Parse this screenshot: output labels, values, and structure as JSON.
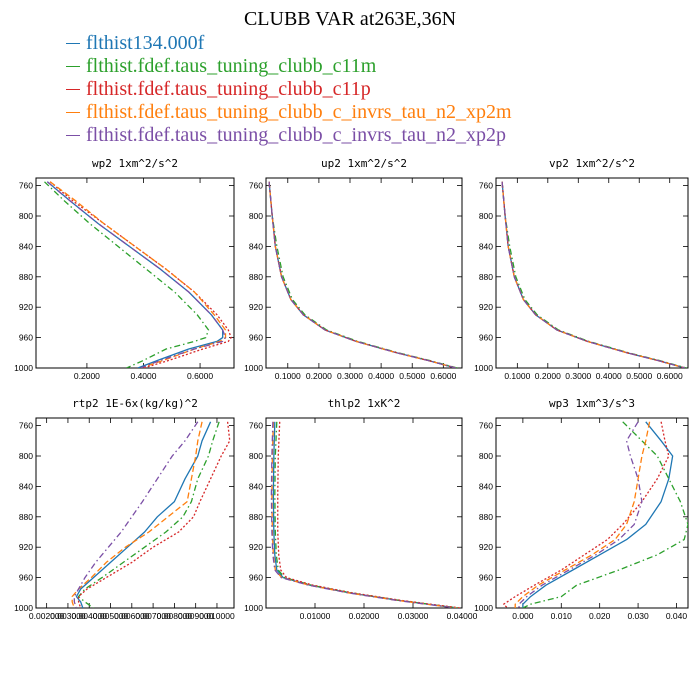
{
  "title": "CLUBB VAR at263E,36N",
  "colors": {
    "flthist134.000f": "#1f77b4",
    "c11m": "#2ca02c",
    "c11p": "#d62728",
    "xp2m": "#ff7f0e",
    "xp2p": "#7b4fa6"
  },
  "legend": [
    {
      "label": "flthist134.000f",
      "color": "#1f77b4"
    },
    {
      "label": "flthist.fdef.taus_tuning_clubb_c11m",
      "color": "#2ca02c"
    },
    {
      "label": "flthist.fdef.taus_tuning_clubb_c11p",
      "color": "#d62728"
    },
    {
      "label": "flthist.fdef.taus_tuning_clubb_c_invrs_tau_n2_xp2m",
      "color": "#ff7f0e"
    },
    {
      "label": "flthist.fdef.taus_tuning_clubb_c_invrs_tau_n2_xp2p",
      "color": "#7b4fa6"
    }
  ],
  "chart_data": [
    {
      "type": "line",
      "title": "wp2  1xm^2/s^2",
      "ylim": [
        1000,
        750
      ],
      "xlim": [
        0.02,
        0.72
      ],
      "yticks": [
        760,
        800,
        840,
        880,
        920,
        960,
        1000
      ],
      "xticks": [
        0.2,
        0.4,
        0.6
      ],
      "xticklabels": [
        "0.2000",
        "0.4000",
        "0.6000"
      ],
      "y": [
        755,
        780,
        810,
        840,
        870,
        900,
        930,
        950,
        960,
        965,
        975,
        990,
        1000
      ],
      "series": [
        {
          "name": "flthist134.000f",
          "values": [
            0.06,
            0.14,
            0.24,
            0.35,
            0.46,
            0.56,
            0.64,
            0.68,
            0.68,
            0.66,
            0.56,
            0.45,
            0.38
          ]
        },
        {
          "name": "flthist.fdef.taus_tuning_clubb_c11m",
          "values": [
            0.05,
            0.12,
            0.21,
            0.31,
            0.41,
            0.51,
            0.59,
            0.63,
            0.62,
            0.58,
            0.48,
            0.4,
            0.34
          ]
        },
        {
          "name": "flthist.fdef.taus_tuning_clubb_c11p",
          "values": [
            0.07,
            0.15,
            0.26,
            0.37,
            0.48,
            0.58,
            0.66,
            0.7,
            0.71,
            0.7,
            0.61,
            0.49,
            0.4
          ]
        },
        {
          "name": "flthist.fdef.taus_tuning_clubb_c_invrs_tau_n2_xp2m",
          "values": [
            0.07,
            0.16,
            0.26,
            0.37,
            0.48,
            0.58,
            0.65,
            0.69,
            0.69,
            0.67,
            0.58,
            0.47,
            0.39
          ]
        },
        {
          "name": "flthist.fdef.taus_tuning_clubb_c_invrs_tau_n2_xp2p",
          "values": [
            0.06,
            0.14,
            0.24,
            0.35,
            0.46,
            0.56,
            0.64,
            0.68,
            0.69,
            0.68,
            0.58,
            0.46,
            0.39
          ]
        }
      ]
    },
    {
      "type": "line",
      "title": "up2  1xm^2/s^2",
      "ylim": [
        1000,
        750
      ],
      "xlim": [
        0.03,
        0.66
      ],
      "yticks": [
        760,
        800,
        840,
        880,
        920,
        960,
        1000
      ],
      "xticks": [
        0.1,
        0.2,
        0.3,
        0.4,
        0.5,
        0.6
      ],
      "xticklabels": [
        "0.1000",
        "0.2000",
        "0.3000",
        "0.4000",
        "0.5000",
        "0.6000"
      ],
      "y": [
        755,
        800,
        840,
        880,
        910,
        930,
        950,
        965,
        980,
        990,
        1000
      ],
      "series": [
        {
          "name": "flthist134.000f",
          "values": [
            0.04,
            0.05,
            0.06,
            0.08,
            0.11,
            0.15,
            0.22,
            0.32,
            0.45,
            0.55,
            0.64
          ]
        },
        {
          "name": "flthist.fdef.taus_tuning_clubb_c11m",
          "values": [
            0.04,
            0.05,
            0.065,
            0.085,
            0.115,
            0.155,
            0.225,
            0.325,
            0.455,
            0.555,
            0.645
          ]
        },
        {
          "name": "flthist.fdef.taus_tuning_clubb_c11p",
          "values": [
            0.04,
            0.05,
            0.06,
            0.08,
            0.11,
            0.15,
            0.22,
            0.32,
            0.45,
            0.55,
            0.64
          ]
        },
        {
          "name": "flthist.fdef.taus_tuning_clubb_c_invrs_tau_n2_xp2m",
          "values": [
            0.04,
            0.05,
            0.06,
            0.08,
            0.11,
            0.15,
            0.22,
            0.32,
            0.45,
            0.55,
            0.64
          ]
        },
        {
          "name": "flthist.fdef.taus_tuning_clubb_c_invrs_tau_n2_xp2p",
          "values": [
            0.04,
            0.05,
            0.06,
            0.08,
            0.11,
            0.15,
            0.22,
            0.32,
            0.45,
            0.55,
            0.64
          ]
        }
      ]
    },
    {
      "type": "line",
      "title": "vp2  1xm^2/s^2",
      "ylim": [
        1000,
        750
      ],
      "xlim": [
        0.03,
        0.66
      ],
      "yticks": [
        760,
        800,
        840,
        880,
        920,
        960,
        1000
      ],
      "xticks": [
        0.1,
        0.2,
        0.3,
        0.4,
        0.5,
        0.6
      ],
      "xticklabels": [
        "0.1000",
        "0.2000",
        "0.3000",
        "0.4000",
        "0.5000",
        "0.6000"
      ],
      "y": [
        755,
        800,
        840,
        880,
        910,
        930,
        950,
        965,
        980,
        990,
        1000
      ],
      "series": [
        {
          "name": "flthist134.000f",
          "values": [
            0.05,
            0.06,
            0.07,
            0.09,
            0.12,
            0.16,
            0.23,
            0.33,
            0.46,
            0.56,
            0.65
          ]
        },
        {
          "name": "flthist.fdef.taus_tuning_clubb_c11m",
          "values": [
            0.05,
            0.06,
            0.075,
            0.095,
            0.125,
            0.165,
            0.235,
            0.335,
            0.465,
            0.565,
            0.655
          ]
        },
        {
          "name": "flthist.fdef.taus_tuning_clubb_c11p",
          "values": [
            0.05,
            0.06,
            0.07,
            0.09,
            0.12,
            0.16,
            0.23,
            0.33,
            0.46,
            0.56,
            0.65
          ]
        },
        {
          "name": "flthist.fdef.taus_tuning_clubb_c_invrs_tau_n2_xp2m",
          "values": [
            0.05,
            0.06,
            0.07,
            0.09,
            0.12,
            0.16,
            0.23,
            0.33,
            0.46,
            0.56,
            0.65
          ]
        },
        {
          "name": "flthist.fdef.taus_tuning_clubb_c_invrs_tau_n2_xp2p",
          "values": [
            0.05,
            0.06,
            0.07,
            0.09,
            0.12,
            0.16,
            0.23,
            0.33,
            0.46,
            0.56,
            0.65
          ]
        }
      ]
    },
    {
      "type": "line",
      "title": "rtp2  1E-6x(kg/kg)^2",
      "ylim": [
        1000,
        750
      ],
      "xlim": [
        0.0015,
        0.0108
      ],
      "yticks": [
        760,
        800,
        840,
        880,
        920,
        960,
        1000
      ],
      "xticks": [
        0.002,
        0.003,
        0.004,
        0.005,
        0.006,
        0.007,
        0.008,
        0.009,
        0.01
      ],
      "xticklabels": [
        "0.002000",
        "0.003000",
        "0.004000",
        "0.005000",
        "0.006000",
        "0.007000",
        "0.008000",
        "0.009000",
        "0.010000"
      ],
      "y": [
        755,
        780,
        800,
        830,
        860,
        880,
        900,
        920,
        940,
        960,
        975,
        985,
        992,
        1000
      ],
      "series": [
        {
          "name": "flthist134.000f",
          "values": [
            0.0097,
            0.0093,
            0.0091,
            0.0085,
            0.008,
            0.0072,
            0.0066,
            0.0058,
            0.005,
            0.0042,
            0.0036,
            0.0034,
            0.0036,
            0.0037
          ]
        },
        {
          "name": "flthist.fdef.taus_tuning_clubb_c11m",
          "values": [
            0.0101,
            0.0098,
            0.0096,
            0.0091,
            0.0088,
            0.0084,
            0.0076,
            0.0066,
            0.0056,
            0.0046,
            0.0038,
            0.0035,
            0.0038,
            0.0042
          ]
        },
        {
          "name": "flthist.fdef.taus_tuning_clubb_c11p",
          "values": [
            0.0105,
            0.0106,
            0.0102,
            0.0097,
            0.0092,
            0.0089,
            0.0082,
            0.007,
            0.006,
            0.0048,
            0.0039,
            0.0035,
            0.0035,
            0.0036
          ]
        },
        {
          "name": "flthist.fdef.taus_tuning_clubb_c_invrs_tau_n2_xp2m",
          "values": [
            0.0093,
            0.0091,
            0.009,
            0.0088,
            0.0086,
            0.0077,
            0.0068,
            0.0057,
            0.0048,
            0.0041,
            0.0035,
            0.0032,
            0.0032,
            0.0033
          ]
        },
        {
          "name": "flthist.fdef.taus_tuning_clubb_c_invrs_tau_n2_xp2p",
          "values": [
            0.0091,
            0.0085,
            0.0079,
            0.0072,
            0.0065,
            0.006,
            0.0055,
            0.0049,
            0.0043,
            0.0038,
            0.0035,
            0.0033,
            0.0033,
            0.0034
          ]
        }
      ]
    },
    {
      "type": "line",
      "title": "thlp2  1xK^2",
      "ylim": [
        1000,
        750
      ],
      "xlim": [
        0.0,
        0.04
      ],
      "yticks": [
        760,
        800,
        840,
        880,
        920,
        960,
        1000
      ],
      "xticks": [
        0.01,
        0.02,
        0.03,
        0.04
      ],
      "xticklabels": [
        "0.01000",
        "0.02000",
        "0.03000",
        "0.04000"
      ],
      "y": [
        755,
        800,
        850,
        900,
        930,
        950,
        960,
        970,
        980,
        990,
        1000
      ],
      "series": [
        {
          "name": "flthist134.000f",
          "values": [
            0.0018,
            0.0016,
            0.0015,
            0.0016,
            0.0018,
            0.0022,
            0.0035,
            0.009,
            0.017,
            0.027,
            0.039
          ]
        },
        {
          "name": "flthist.fdef.taus_tuning_clubb_c11m",
          "values": [
            0.0022,
            0.0019,
            0.0018,
            0.0019,
            0.0021,
            0.0025,
            0.0038,
            0.0093,
            0.0173,
            0.0273,
            0.0393
          ]
        },
        {
          "name": "flthist.fdef.taus_tuning_clubb_c11p",
          "values": [
            0.0028,
            0.0025,
            0.0024,
            0.0024,
            0.0026,
            0.003,
            0.0042,
            0.0096,
            0.0176,
            0.0276,
            0.0396
          ]
        },
        {
          "name": "flthist.fdef.taus_tuning_clubb_c_invrs_tau_n2_xp2m",
          "values": [
            0.0015,
            0.0013,
            0.0012,
            0.0013,
            0.0015,
            0.0019,
            0.0032,
            0.0088,
            0.0168,
            0.0268,
            0.0388
          ]
        },
        {
          "name": "flthist.fdef.taus_tuning_clubb_c_invrs_tau_n2_xp2p",
          "values": [
            0.0014,
            0.0012,
            0.0011,
            0.0012,
            0.0014,
            0.0018,
            0.0031,
            0.0087,
            0.0167,
            0.0267,
            0.0387
          ]
        }
      ]
    },
    {
      "type": "line",
      "title": "wp3  1xm^3/s^3",
      "ylim": [
        1000,
        750
      ],
      "xlim": [
        -0.007,
        0.043
      ],
      "yticks": [
        760,
        800,
        840,
        880,
        920,
        960,
        1000
      ],
      "xticks": [
        0.0,
        0.01,
        0.02,
        0.03,
        0.04
      ],
      "xticklabels": [
        "0.000",
        "0.010",
        "0.020",
        "0.030",
        "0.040"
      ],
      "y": [
        755,
        780,
        800,
        830,
        860,
        890,
        910,
        930,
        950,
        970,
        985,
        995,
        1000
      ],
      "series": [
        {
          "name": "flthist134.000f",
          "values": [
            0.032,
            0.036,
            0.039,
            0.038,
            0.036,
            0.032,
            0.027,
            0.02,
            0.013,
            0.006,
            0.002,
            0.0,
            0.0
          ]
        },
        {
          "name": "flthist.fdef.taus_tuning_clubb_c11m",
          "values": [
            0.026,
            0.031,
            0.035,
            0.038,
            0.041,
            0.043,
            0.042,
            0.035,
            0.025,
            0.014,
            0.01,
            0.002,
            0.0
          ]
        },
        {
          "name": "flthist.fdef.taus_tuning_clubb_c11p",
          "values": [
            0.036,
            0.037,
            0.038,
            0.035,
            0.031,
            0.026,
            0.022,
            0.016,
            0.01,
            0.003,
            -0.002,
            -0.005,
            -0.004
          ]
        },
        {
          "name": "flthist.fdef.taus_tuning_clubb_c_invrs_tau_n2_xp2m",
          "values": [
            0.033,
            0.032,
            0.031,
            0.03,
            0.029,
            0.027,
            0.024,
            0.018,
            0.011,
            0.004,
            0.0,
            -0.002,
            -0.002
          ]
        },
        {
          "name": "flthist.fdef.taus_tuning_clubb_c_invrs_tau_n2_xp2p",
          "values": [
            0.03,
            0.027,
            0.028,
            0.03,
            0.031,
            0.029,
            0.025,
            0.019,
            0.012,
            0.005,
            0.001,
            -0.001,
            -0.001
          ]
        }
      ]
    }
  ]
}
